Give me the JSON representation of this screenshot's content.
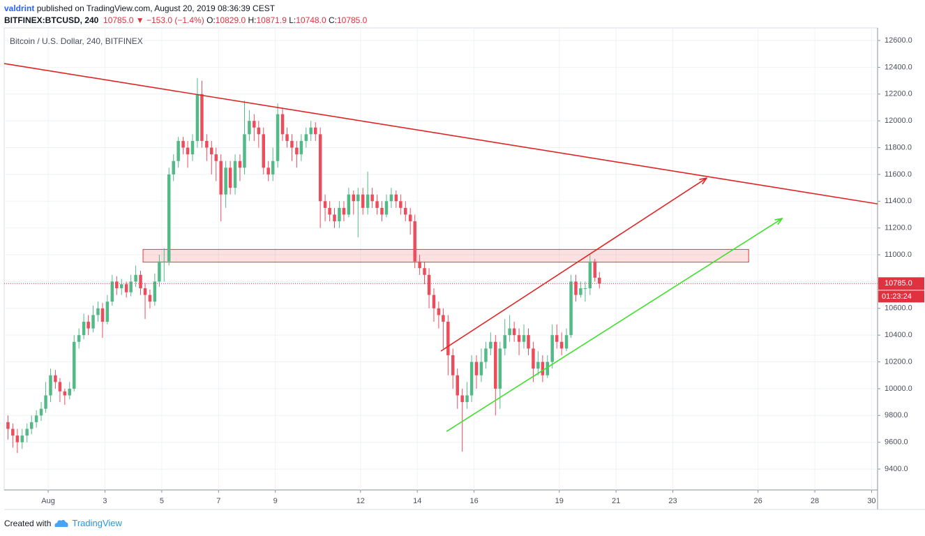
{
  "header": {
    "author": "valdrint",
    "published": "published on TradingView.com, August 20, 2019 08:36:39 CEST",
    "symbol": "BITFINEX:BTCUSD, 240",
    "last": "10785.0",
    "change": "−153.0 (−1.4%)",
    "ohlc": [
      {
        "label": "O:",
        "value": "10829.0"
      },
      {
        "label": "H:",
        "value": "10871.9"
      },
      {
        "label": "L:",
        "value": "10748.0"
      },
      {
        "label": "C:",
        "value": "10785.0"
      }
    ]
  },
  "chart_data": {
    "type": "candlestick",
    "legend": "Bitcoin / U.S. Dollar, 240, BITFINEX",
    "up_color": "#53b987",
    "down_color": "#eb4d5c",
    "grid": true,
    "xlim": [
      -0.55,
      30.21
    ],
    "ylim": [
      9244,
      12694
    ],
    "xticks": [
      {
        "value": 1,
        "label": "Aug"
      },
      3,
      5,
      7,
      9,
      12,
      14,
      16,
      19,
      21,
      23,
      26,
      28,
      30
    ],
    "yticks": [
      {
        "value": 9400,
        "label": "9400.0"
      },
      {
        "value": 9600,
        "label": "9600.0"
      },
      {
        "value": 9800,
        "label": "9800.0"
      },
      {
        "value": 10000,
        "label": "10000.0"
      },
      {
        "value": 10200,
        "label": "10200.0"
      },
      {
        "value": 10400,
        "label": "10400.0"
      },
      {
        "value": 10600,
        "label": "10600.0"
      },
      {
        "value": 10800,
        "label": "10800.0"
      },
      {
        "value": 11000,
        "label": "11000.0"
      },
      {
        "value": 11200,
        "label": "11200.0"
      },
      {
        "value": 11400,
        "label": "11400.0"
      },
      {
        "value": 11600,
        "label": "11600.0"
      },
      {
        "value": 11800,
        "label": "11800.0"
      },
      {
        "value": 12000,
        "label": "12000.0"
      },
      {
        "value": 12200,
        "label": "12200.0"
      },
      {
        "value": 12400,
        "label": "12400.0"
      },
      {
        "value": 12600,
        "label": "12600.0"
      }
    ],
    "x": [
      -0.5,
      -0.33,
      -0.17,
      0,
      0.17,
      0.33,
      0.5,
      0.67,
      0.83,
      1,
      1.17,
      1.33,
      1.5,
      1.67,
      1.83,
      2,
      2.17,
      2.33,
      2.5,
      2.67,
      2.83,
      3,
      3.17,
      3.33,
      3.5,
      3.67,
      3.83,
      4,
      4.17,
      4.33,
      4.5,
      4.67,
      4.83,
      5,
      5.17,
      5.33,
      5.5,
      5.67,
      5.83,
      6,
      6.17,
      6.33,
      6.5,
      6.67,
      6.83,
      7,
      7.17,
      7.33,
      7.5,
      7.67,
      7.83,
      8,
      8.17,
      8.33,
      8.5,
      8.67,
      8.83,
      9,
      9.17,
      9.33,
      9.5,
      9.67,
      9.83,
      10,
      10.17,
      10.33,
      10.5,
      10.67,
      10.83,
      11,
      11.17,
      11.33,
      11.5,
      11.67,
      11.83,
      12,
      12.17,
      12.33,
      12.5,
      12.67,
      12.83,
      13,
      13.17,
      13.33,
      13.5,
      13.67,
      13.83,
      14,
      14.17,
      14.33,
      14.5,
      14.67,
      14.83,
      15,
      15.17,
      15.33,
      15.5,
      15.67,
      15.83,
      16,
      16.17,
      16.33,
      16.5,
      16.67,
      16.83,
      17,
      17.17,
      17.33,
      17.5,
      17.67,
      17.83,
      18,
      18.17,
      18.33,
      18.5,
      18.67,
      18.83,
      19,
      19.17,
      19.33,
      19.5,
      19.67,
      19.83,
      20,
      20.17,
      20.33
    ],
    "open": [
      9750,
      9700,
      9650,
      9600,
      9650,
      9700,
      9750,
      9800,
      9850,
      9950,
      10100,
      10050,
      9980,
      9950,
      10000,
      10350,
      10400,
      10500,
      10450,
      10550,
      10600,
      10500,
      10650,
      10800,
      10750,
      10780,
      10720,
      10800,
      10850,
      10750,
      10700,
      10650,
      10800,
      10950,
      10950,
      11600,
      11700,
      11850,
      11800,
      11750,
      11850,
      12200,
      11850,
      11800,
      11750,
      11700,
      11450,
      11650,
      11500,
      11700,
      11650,
      11900,
      12000,
      11950,
      11900,
      11650,
      11600,
      11700,
      12050,
      11900,
      11850,
      11800,
      11750,
      11850,
      11900,
      11950,
      11900,
      11400,
      11350,
      11300,
      11250,
      11350,
      11300,
      11450,
      11400,
      11450,
      11350,
      11450,
      11400,
      11350,
      11300,
      11400,
      11450,
      11400,
      11350,
      11300,
      11250,
      10950,
      10900,
      10850,
      10700,
      10600,
      10550,
      10500,
      10250,
      10100,
      9950,
      9900,
      9950,
      10200,
      10100,
      10200,
      10300,
      10350,
      10000,
      10300,
      10400,
      10450,
      10400,
      10350,
      10400,
      10300,
      10150,
      10200,
      10100,
      10200,
      10400,
      10350,
      10300,
      10400,
      10800,
      10700,
      10750,
      10750,
      10950,
      10829
    ],
    "high": [
      9800,
      9740,
      9700,
      9700,
      9740,
      9800,
      9840,
      9900,
      10050,
      10150,
      10140,
      10080,
      10000,
      10050,
      10400,
      10450,
      10560,
      10550,
      10620,
      10650,
      10640,
      10700,
      10850,
      10840,
      10820,
      10800,
      10850,
      10920,
      10880,
      10790,
      10740,
      10860,
      11000,
      11050,
      11650,
      11750,
      11880,
      11880,
      11850,
      11900,
      12320,
      12300,
      11900,
      11850,
      11800,
      11750,
      11700,
      11700,
      11750,
      11750,
      12150,
      12080,
      12050,
      12000,
      11950,
      11700,
      11800,
      12130,
      12100,
      11950,
      11900,
      11850,
      11900,
      11950,
      12000,
      11990,
      11950,
      11450,
      11400,
      11350,
      11400,
      11400,
      11500,
      11480,
      11500,
      11500,
      11620,
      11500,
      11450,
      11400,
      11450,
      11500,
      11480,
      11450,
      11400,
      11350,
      11300,
      11000,
      10950,
      10900,
      10750,
      10650,
      10600,
      10550,
      10300,
      10150,
      10000,
      10050,
      10250,
      10250,
      10300,
      10350,
      10420,
      10400,
      10350,
      10520,
      10550,
      10500,
      10450,
      10480,
      10450,
      10350,
      10280,
      10250,
      10250,
      10480,
      10480,
      10420,
      10450,
      10850,
      10850,
      10800,
      10800,
      11000,
      10970,
      10871.9
    ],
    "low": [
      9620,
      9560,
      9520,
      9550,
      9600,
      9660,
      9710,
      9760,
      9820,
      9900,
      10000,
      9900,
      9880,
      9920,
      9980,
      10300,
      10370,
      10400,
      10420,
      10500,
      10380,
      10480,
      10620,
      10700,
      10700,
      10680,
      10690,
      10760,
      10700,
      10520,
      10600,
      10620,
      10760,
      10800,
      10920,
      11550,
      11650,
      11750,
      11650,
      11700,
      11800,
      11800,
      11700,
      11600,
      11550,
      11250,
      11350,
      11450,
      11450,
      11550,
      11600,
      11850,
      11850,
      11800,
      11600,
      11550,
      11550,
      11650,
      11850,
      11800,
      11700,
      11650,
      11700,
      11800,
      11850,
      11850,
      11200,
      11250,
      11250,
      11200,
      11200,
      11250,
      11280,
      11300,
      11130,
      11300,
      11300,
      11350,
      11300,
      11250,
      11280,
      11350,
      11350,
      11300,
      11250,
      11150,
      10900,
      10850,
      10780,
      10600,
      10500,
      10450,
      10300,
      10100,
      10000,
      9850,
      9530,
      9850,
      9900,
      10000,
      10050,
      10150,
      10250,
      9800,
      9850,
      10250,
      10350,
      10350,
      10250,
      10300,
      10250,
      10050,
      10100,
      10050,
      10080,
      10150,
      10300,
      10250,
      10280,
      10380,
      10650,
      10680,
      10650,
      10700,
      10800,
      10748
    ],
    "close": [
      9700,
      9650,
      9600,
      9650,
      9700,
      9750,
      9800,
      9850,
      9950,
      10100,
      10050,
      9980,
      9950,
      10000,
      10350,
      10400,
      10500,
      10450,
      10550,
      10600,
      10500,
      10650,
      10800,
      10750,
      10780,
      10720,
      10800,
      10850,
      10750,
      10700,
      10650,
      10800,
      10950,
      10950,
      11600,
      11700,
      11850,
      11800,
      11750,
      11850,
      12200,
      11850,
      11800,
      11750,
      11700,
      11450,
      11650,
      11500,
      11700,
      11650,
      11900,
      12000,
      11950,
      11900,
      11650,
      11600,
      11700,
      12050,
      11900,
      11850,
      11800,
      11750,
      11850,
      11900,
      11950,
      11900,
      11400,
      11350,
      11300,
      11250,
      11350,
      11300,
      11450,
      11400,
      11450,
      11350,
      11450,
      11400,
      11350,
      11300,
      11400,
      11450,
      11400,
      11350,
      11300,
      11250,
      10950,
      10900,
      10850,
      10700,
      10600,
      10550,
      10500,
      10250,
      10100,
      9950,
      9900,
      9950,
      10200,
      10100,
      10200,
      10300,
      10350,
      10000,
      10300,
      10400,
      10450,
      10400,
      10350,
      10400,
      10300,
      10150,
      10200,
      10100,
      10200,
      10400,
      10350,
      10300,
      10400,
      10800,
      10700,
      10750,
      10750,
      10950,
      10829,
      10785
    ],
    "last_price": {
      "value": 10785,
      "label": "10785.0"
    },
    "price_color": "#e0313f",
    "countdown": "01:23:24",
    "zone": {
      "x": [
        4.34,
        25.67
      ],
      "y": [
        10945,
        11040
      ],
      "color": "#e53935"
    },
    "drawings": [
      {
        "x": [
          -0.55,
          30.21
        ],
        "y": [
          12428,
          11380
        ],
        "color": "#e02424",
        "arrow": false
      },
      {
        "x": [
          14.83,
          24.19
        ],
        "y": [
          10281,
          11573
        ],
        "color": "#e02424",
        "arrow": true
      },
      {
        "x": [
          15.03,
          26.85
        ],
        "y": [
          9681,
          11271
        ],
        "color": "#3ee02a",
        "arrow": true
      }
    ]
  },
  "footer": {
    "text": "Created with",
    "brand": "TradingView"
  }
}
